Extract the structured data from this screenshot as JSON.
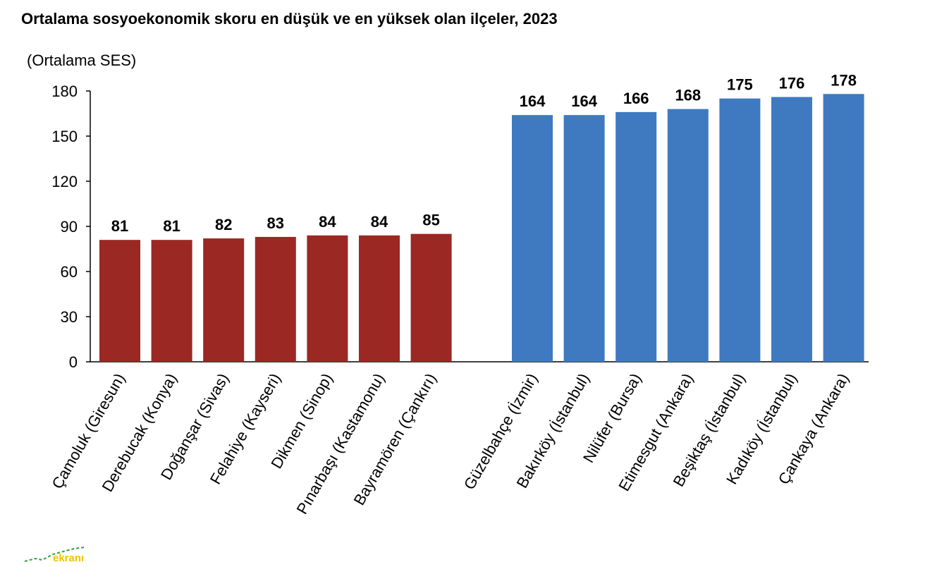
{
  "title": "Ortalama sosyoekonomik skoru en düşük ve en yüksek olan ilçeler, 2023",
  "watermark": "ekranı",
  "colors": {
    "low": "#9b2822",
    "high": "#3f7ac0",
    "axis": "#000000",
    "text": "#000000"
  },
  "chart_data": {
    "type": "bar",
    "ylabel": "(Ortalama SES)",
    "ylim": [
      0,
      180
    ],
    "yticks": [
      0,
      30,
      60,
      90,
      120,
      150,
      180
    ],
    "grid": false,
    "legend": "none",
    "categories": [
      "Çamoluk (Giresun)",
      "Derebucak (Konya)",
      "Doğanşar (Sivas)",
      "Felahiye (Kayseri)",
      "Dikmen (Sinop)",
      "Pınarbaşı (Kastamonu)",
      "Bayramören (Çankırı)",
      "Güzelbahçe (İzmir)",
      "Bakırköy (İstanbul)",
      "Nilüfer (Bursa)",
      "Etimesgut (Ankara)",
      "Beşiktaş (İstanbul)",
      "Kadıköy (İstanbul)",
      "Çankaya (Ankara)"
    ],
    "values": [
      81,
      81,
      82,
      83,
      84,
      84,
      85,
      164,
      164,
      166,
      168,
      175,
      176,
      178
    ],
    "groups": [
      "low",
      "low",
      "low",
      "low",
      "low",
      "low",
      "low",
      "high",
      "high",
      "high",
      "high",
      "high",
      "high",
      "high"
    ]
  }
}
